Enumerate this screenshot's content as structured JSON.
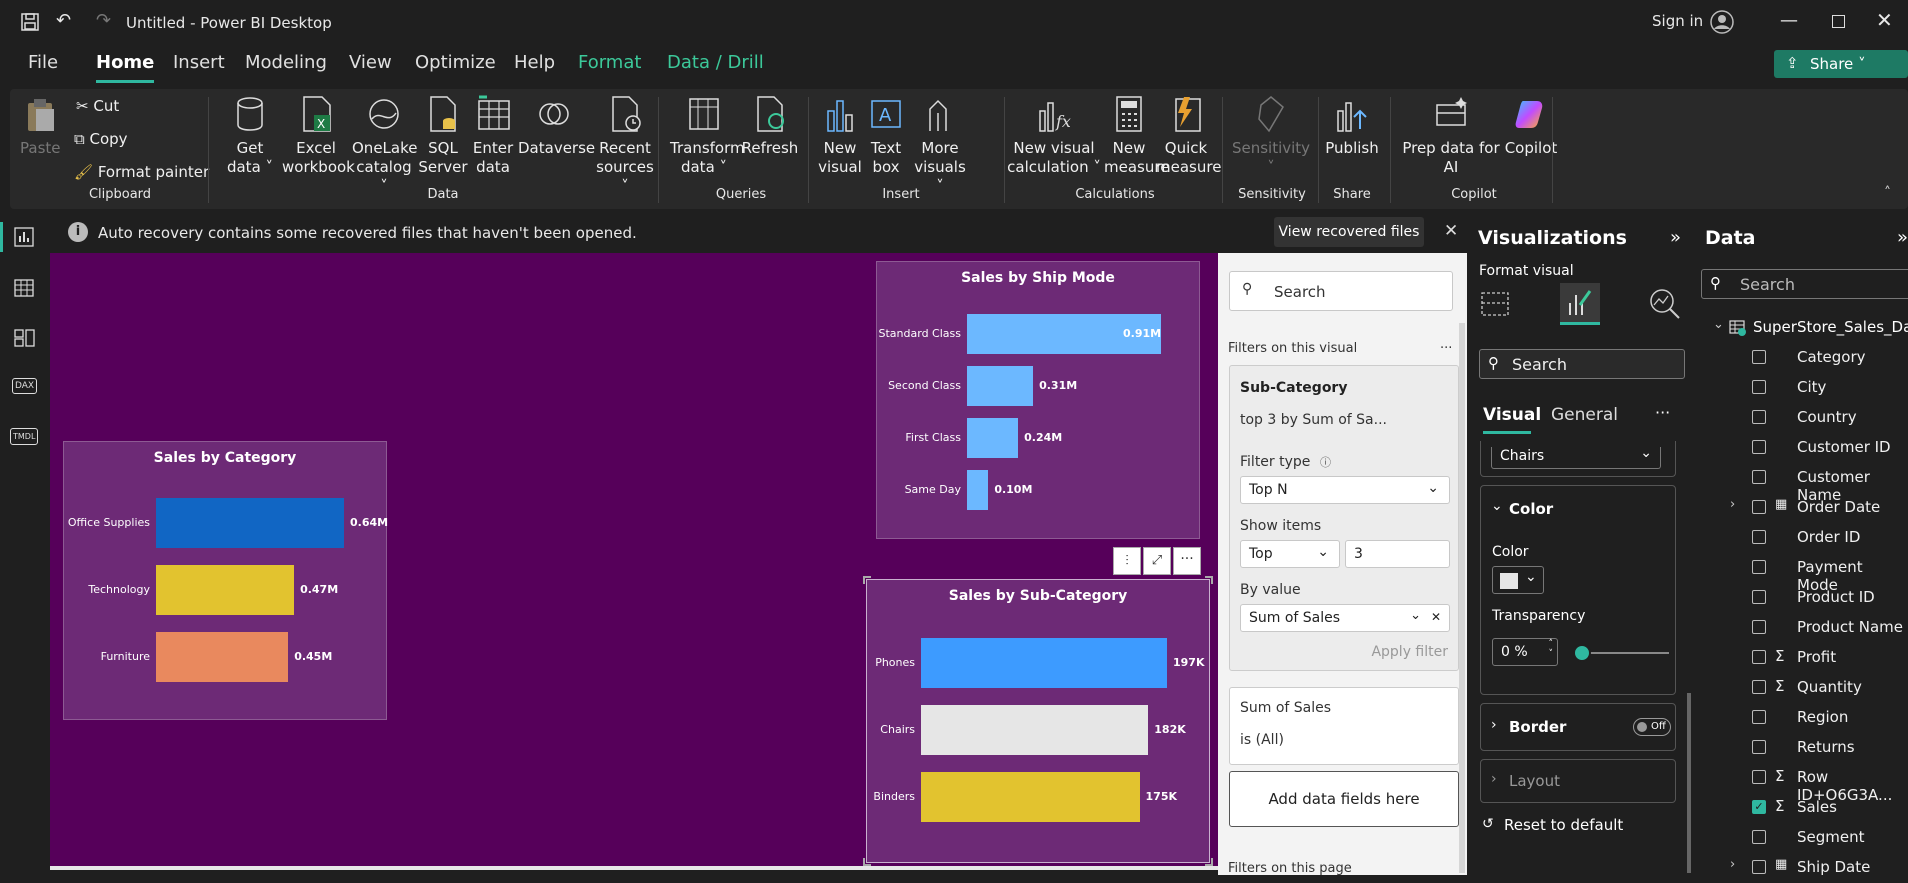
{
  "title": "Untitled - Power BI Desktop",
  "sign_in": "Sign in",
  "share": "Share",
  "tabs": [
    "File",
    "Home",
    "Insert",
    "Modeling",
    "View",
    "Optimize",
    "Help",
    "Format",
    "Data / Drill"
  ],
  "clipboard": {
    "paste": "Paste",
    "cut": "Cut",
    "copy": "Copy",
    "format_painter": "Format painter",
    "group": "Clipboard"
  },
  "ribbon": {
    "data_group": "Data",
    "queries_group": "Queries",
    "insert_group": "Insert",
    "calc_group": "Calculations",
    "sens_group": "Sensitivity",
    "share_group": "Share",
    "copilot_group": "Copilot",
    "get_data": [
      "Get",
      "data ˅"
    ],
    "excel": [
      "Excel",
      "workbook"
    ],
    "onelake": [
      "OneLake",
      "catalog ˅"
    ],
    "sql": [
      "SQL",
      "Server"
    ],
    "enter": [
      "Enter",
      "data"
    ],
    "dataverse": [
      "Dataverse",
      ""
    ],
    "recent": [
      "Recent",
      "sources ˅"
    ],
    "transform": [
      "Transform",
      "data ˅"
    ],
    "refresh": [
      "Refresh",
      ""
    ],
    "new_visual": [
      "New",
      "visual"
    ],
    "text_box": [
      "Text",
      "box"
    ],
    "more_visuals": [
      "More",
      "visuals ˅"
    ],
    "new_visual_calc": [
      "New visual",
      "calculation ˅"
    ],
    "new_measure": [
      "New",
      "measure"
    ],
    "quick_measure": [
      "Quick",
      "measure"
    ],
    "sensitivity": [
      "Sensitivity",
      "˅"
    ],
    "publish": [
      "Publish",
      ""
    ],
    "prep_data": [
      "Prep data for",
      "AI"
    ],
    "copilot": [
      "Copilot",
      ""
    ]
  },
  "infobar": {
    "message": "Auto recovery contains some recovered files that haven't been opened.",
    "button": "View recovered files"
  },
  "charts": {
    "ship_mode": {
      "title": "Sales by Ship Mode"
    },
    "category": {
      "title": "Sales by Category"
    },
    "subcategory": {
      "title": "Sales by Sub-Category"
    }
  },
  "chart_data": [
    {
      "type": "bar",
      "title": "Sales by Ship Mode",
      "categories": [
        "Standard Class",
        "Second Class",
        "First Class",
        "Same Day"
      ],
      "values": [
        0.91,
        0.31,
        0.24,
        0.1
      ],
      "labels": [
        "0.91M",
        "0.31M",
        "0.24M",
        "0.10M"
      ],
      "color": "#6cb8ff"
    },
    {
      "type": "bar",
      "title": "Sales by Category",
      "categories": [
        "Office Supplies",
        "Technology",
        "Furniture"
      ],
      "values": [
        0.64,
        0.47,
        0.45
      ],
      "labels": [
        "0.64M",
        "0.47M",
        "0.45M"
      ],
      "colors": [
        "#1166c4",
        "#e2c32f",
        "#e9895e"
      ]
    },
    {
      "type": "bar",
      "title": "Sales by Sub-Category",
      "categories": [
        "Phones",
        "Chairs",
        "Binders"
      ],
      "values": [
        197,
        182,
        175
      ],
      "labels": [
        "197K",
        "182K",
        "175K"
      ],
      "colors": [
        "#3d9bff",
        "#e6e6e6",
        "#e2c32f"
      ]
    }
  ],
  "filters": {
    "search": "Search",
    "on_visual": "Filters on this visual",
    "more": "...",
    "subcat_title": "Sub-Category",
    "subcat_desc": "top 3 by Sum of Sa...",
    "filter_type_label": "Filter type",
    "filter_type": "Top N",
    "show_items_label": "Show items",
    "show_dir": "Top",
    "show_count": "3",
    "by_value_label": "By value",
    "by_value": "Sum of Sales",
    "apply": "Apply filter",
    "sum_title": "Sum of Sales",
    "sum_desc": "is (All)",
    "add_fields": "Add data fields here",
    "on_page": "Filters on this page"
  },
  "viz": {
    "title": "Visualizations",
    "format_visual": "Format visual",
    "search": "Search",
    "tab_visual": "Visual",
    "tab_general": "General",
    "dropdown": "Chairs",
    "color_section": "Color",
    "color_label": "Color",
    "transparency": "Transparency",
    "transparency_value": "0 %",
    "border": "Border",
    "border_toggle": "Off",
    "layout": "Layout",
    "reset": "Reset to default"
  },
  "data": {
    "title": "Data",
    "search": "Search",
    "table": "SuperStore_Sales_Dat...",
    "fields": [
      {
        "name": "Category",
        "sigma": false,
        "checked": false,
        "expand": false
      },
      {
        "name": "City",
        "sigma": false,
        "checked": false,
        "expand": false
      },
      {
        "name": "Country",
        "sigma": false,
        "checked": false,
        "expand": false
      },
      {
        "name": "Customer ID",
        "sigma": false,
        "checked": false,
        "expand": false
      },
      {
        "name": "Customer Name",
        "sigma": false,
        "checked": false,
        "expand": false
      },
      {
        "name": "Order Date",
        "sigma": false,
        "checked": false,
        "expand": true
      },
      {
        "name": "Order ID",
        "sigma": false,
        "checked": false,
        "expand": false
      },
      {
        "name": "Payment Mode",
        "sigma": false,
        "checked": false,
        "expand": false
      },
      {
        "name": "Product ID",
        "sigma": false,
        "checked": false,
        "expand": false
      },
      {
        "name": "Product Name",
        "sigma": false,
        "checked": false,
        "expand": false
      },
      {
        "name": "Profit",
        "sigma": true,
        "checked": false,
        "expand": false
      },
      {
        "name": "Quantity",
        "sigma": true,
        "checked": false,
        "expand": false
      },
      {
        "name": "Region",
        "sigma": false,
        "checked": false,
        "expand": false
      },
      {
        "name": "Returns",
        "sigma": false,
        "checked": false,
        "expand": false
      },
      {
        "name": "Row ID+O6G3A...",
        "sigma": true,
        "checked": false,
        "expand": false
      },
      {
        "name": "Sales",
        "sigma": true,
        "checked": true,
        "expand": false
      },
      {
        "name": "Segment",
        "sigma": false,
        "checked": false,
        "expand": false
      },
      {
        "name": "Ship Date",
        "sigma": false,
        "checked": false,
        "expand": true
      }
    ]
  }
}
